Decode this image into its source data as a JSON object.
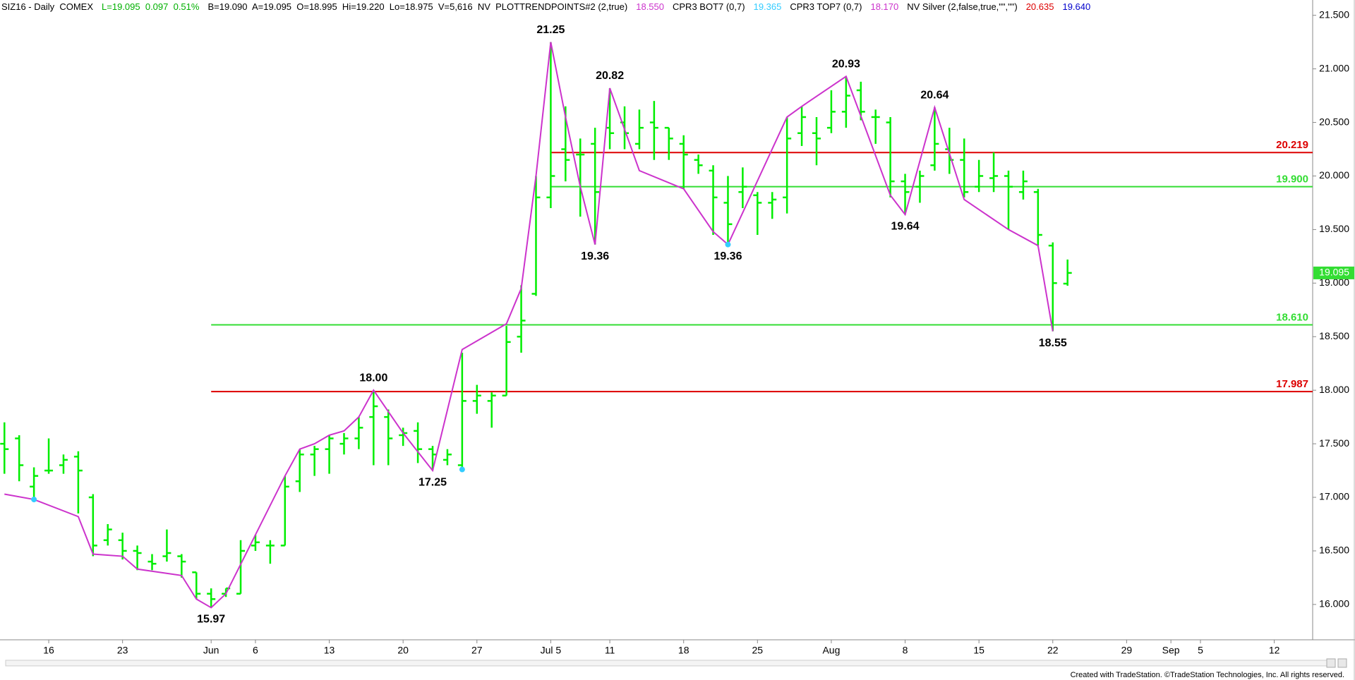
{
  "chart_data": {
    "type": "ohlc",
    "header": [
      {
        "text": "SIZ16 - Daily  COMEX",
        "color": "#000000"
      },
      {
        "text": "L=19.095  0.097  0.51%",
        "color": "#00b000"
      },
      {
        "text": "B=19.090  A=19.095  O=18.995  Hi=19.220  Lo=18.975  V=5,616  NV  PLOTTRENDPOINTS#2 (2,true)",
        "color": "#000000"
      },
      {
        "text": "18.550",
        "color": "#cc33cc"
      },
      {
        "text": "CPR3 BOT7 (0,7)",
        "color": "#000000"
      },
      {
        "text": "19.365",
        "color": "#33ccff"
      },
      {
        "text": "CPR3 TOP7 (0,7)",
        "color": "#000000"
      },
      {
        "text": "18.170",
        "color": "#cc33cc"
      },
      {
        "text": "NV Silver (2,false,true,\"\",\"\")",
        "color": "#000000"
      },
      {
        "text": "20.635",
        "color": "#dd0000"
      },
      {
        "text": "19.640",
        "color": "#0000cc"
      }
    ],
    "color": "#00ee00",
    "open": [
      17.5,
      17.55,
      17.1,
      17.25,
      17.3,
      17.38,
      17.0,
      16.6,
      16.6,
      16.5,
      16.4,
      16.45,
      16.45,
      16.3,
      16.1,
      16.1,
      16.1,
      16.55,
      16.55,
      16.55,
      17.15,
      17.4,
      17.45,
      17.5,
      17.55,
      17.75,
      17.75,
      17.58,
      17.62,
      17.45,
      17.35,
      17.3,
      17.9,
      17.9,
      17.95,
      18.5,
      18.9,
      19.8,
      20.25,
      20.2,
      20.3,
      20.45,
      20.5,
      20.3,
      20.5,
      20.45,
      20.3,
      20.15,
      20.05,
      19.75,
      19.85,
      19.82,
      19.75,
      19.8,
      20.4,
      20.4,
      20.45,
      20.6,
      20.8,
      20.55,
      20.5,
      19.95,
      19.9,
      20.1,
      20.25,
      20.15,
      19.9,
      19.98,
      20.0,
      19.85,
      19.85,
      19.35,
      18.995
    ],
    "high": [
      17.7,
      17.58,
      17.28,
      17.55,
      17.4,
      17.43,
      17.03,
      16.75,
      16.67,
      16.55,
      16.47,
      16.7,
      16.47,
      16.3,
      16.15,
      16.15,
      16.6,
      16.65,
      16.6,
      17.2,
      17.45,
      17.48,
      17.58,
      17.6,
      17.75,
      18.0,
      17.82,
      17.65,
      17.7,
      17.48,
      17.45,
      18.35,
      18.05,
      17.98,
      18.6,
      18.98,
      20.0,
      21.25,
      20.65,
      20.35,
      20.45,
      20.82,
      20.65,
      20.62,
      20.7,
      20.45,
      20.38,
      20.2,
      20.1,
      20.0,
      20.08,
      19.85,
      19.85,
      20.55,
      20.65,
      20.55,
      20.8,
      20.93,
      20.88,
      20.62,
      20.55,
      20.02,
      20.05,
      20.64,
      20.45,
      20.35,
      20.15,
      20.22,
      20.05,
      20.05,
      19.88,
      19.38,
      19.22
    ],
    "low": [
      17.22,
      17.15,
      16.98,
      17.22,
      17.22,
      16.85,
      16.45,
      16.55,
      16.42,
      16.32,
      16.32,
      16.4,
      16.25,
      16.05,
      15.97,
      16.07,
      16.1,
      16.5,
      16.38,
      16.55,
      17.05,
      17.2,
      17.22,
      17.4,
      17.45,
      17.3,
      17.3,
      17.48,
      17.32,
      17.25,
      17.3,
      17.25,
      17.78,
      17.65,
      17.95,
      18.35,
      18.88,
      19.7,
      19.95,
      19.62,
      19.36,
      20.25,
      20.25,
      20.25,
      20.15,
      20.15,
      19.88,
      20.02,
      19.45,
      19.36,
      19.7,
      19.45,
      19.6,
      19.65,
      20.28,
      20.1,
      20.4,
      20.45,
      20.52,
      20.3,
      19.8,
      19.64,
      19.75,
      20.05,
      20.02,
      19.8,
      19.85,
      19.85,
      19.5,
      19.78,
      19.35,
      18.55,
      18.975
    ],
    "close": [
      17.45,
      17.3,
      17.2,
      17.25,
      17.35,
      17.25,
      16.55,
      16.7,
      16.5,
      16.48,
      16.38,
      16.48,
      16.4,
      16.1,
      16.05,
      16.15,
      16.5,
      16.58,
      16.55,
      17.1,
      17.4,
      17.45,
      17.55,
      17.55,
      17.65,
      17.85,
      17.55,
      17.6,
      17.45,
      17.4,
      17.4,
      17.9,
      17.95,
      17.95,
      18.45,
      18.65,
      19.8,
      20.0,
      20.15,
      20.2,
      19.85,
      20.4,
      20.4,
      20.45,
      20.45,
      20.35,
      20.2,
      20.1,
      19.8,
      19.55,
      19.9,
      19.75,
      19.78,
      20.35,
      20.55,
      20.35,
      20.6,
      20.75,
      20.6,
      20.55,
      19.95,
      19.85,
      20.0,
      20.3,
      20.15,
      19.85,
      20.0,
      20.0,
      19.9,
      19.95,
      19.45,
      19.0,
      19.095
    ],
    "trendline": {
      "color": "#cc33cc",
      "x": [
        0,
        2,
        5,
        6,
        8,
        9,
        12,
        13,
        14,
        15,
        17,
        19,
        20,
        21,
        22,
        23,
        24,
        25,
        27,
        29,
        31,
        34,
        35,
        36,
        37,
        38,
        39,
        40,
        41,
        43,
        46,
        48,
        49,
        53,
        54,
        57,
        60,
        61,
        63,
        65,
        68,
        70,
        71
      ],
      "values": [
        17.03,
        16.98,
        16.82,
        16.47,
        16.45,
        16.33,
        16.27,
        16.05,
        15.97,
        16.1,
        16.65,
        17.2,
        17.45,
        17.5,
        17.58,
        17.62,
        17.75,
        18.0,
        17.6,
        17.25,
        18.38,
        18.62,
        18.95,
        20.0,
        21.25,
        20.55,
        19.9,
        19.36,
        20.82,
        20.05,
        19.88,
        19.48,
        19.36,
        20.55,
        20.65,
        20.93,
        19.82,
        19.64,
        20.64,
        19.78,
        19.5,
        19.35,
        18.55
      ]
    },
    "pivot_dots": {
      "color": "#33ccff",
      "x": [
        2,
        31,
        49
      ],
      "values": [
        16.98,
        17.26,
        19.36
      ]
    },
    "annotations": [
      {
        "label": "21.25",
        "x": 37,
        "value": 21.25,
        "placement": "above"
      },
      {
        "label": "20.82",
        "x": 41,
        "value": 20.82,
        "placement": "above"
      },
      {
        "label": "20.93",
        "x": 57,
        "value": 20.93,
        "placement": "above"
      },
      {
        "label": "20.64",
        "x": 63,
        "value": 20.64,
        "placement": "above"
      },
      {
        "label": "18.00",
        "x": 25,
        "value": 18.0,
        "placement": "above"
      },
      {
        "label": "15.97",
        "x": 14,
        "value": 15.97,
        "placement": "below"
      },
      {
        "label": "17.25",
        "x": 29,
        "value": 17.25,
        "placement": "below"
      },
      {
        "label": "19.36",
        "x": 40,
        "value": 19.36,
        "placement": "below"
      },
      {
        "label": "19.36",
        "x": 49,
        "value": 19.36,
        "placement": "below"
      },
      {
        "label": "19.64",
        "x": 61,
        "value": 19.64,
        "placement": "below"
      },
      {
        "label": "18.55",
        "x": 71,
        "value": 18.55,
        "placement": "below"
      }
    ],
    "levels": [
      {
        "value": 20.219,
        "label": "20.219",
        "color": "#dd0000",
        "start": 37
      },
      {
        "value": 19.9,
        "label": "19.900",
        "color": "#33dd33",
        "start": 37
      },
      {
        "value": 18.61,
        "label": "18.610",
        "color": "#33dd33",
        "start": 14
      },
      {
        "value": 17.987,
        "label": "17.987",
        "color": "#dd0000",
        "start": 14
      }
    ],
    "last_price": {
      "value": 19.095,
      "label": "19.095",
      "color": "#33dd33"
    },
    "xlim": [
      -0.3,
      88.6
    ],
    "xticks": [
      {
        "value": 3,
        "label": "16"
      },
      {
        "value": 8,
        "label": "23"
      },
      {
        "value": 14,
        "label": "Jun"
      },
      {
        "value": 17,
        "label": "6"
      },
      {
        "value": 22,
        "label": "13"
      },
      {
        "value": 27,
        "label": "20"
      },
      {
        "value": 32,
        "label": "27"
      },
      {
        "value": 37,
        "label": "Jul 5"
      },
      {
        "value": 41,
        "label": "11"
      },
      {
        "value": 46,
        "label": "18"
      },
      {
        "value": 51,
        "label": "25"
      },
      {
        "value": 56,
        "label": "Aug"
      },
      {
        "value": 61,
        "label": "8"
      },
      {
        "value": 66,
        "label": "15"
      },
      {
        "value": 71,
        "label": "22"
      },
      {
        "value": 76,
        "label": "29"
      },
      {
        "value": 79,
        "label": "Sep"
      },
      {
        "value": 81,
        "label": "5"
      },
      {
        "value": 86,
        "label": "12"
      }
    ],
    "ylim": [
      15.67,
      21.61
    ],
    "yticks": [
      {
        "value": 16,
        "label": "16.000"
      },
      {
        "value": 16.5,
        "label": "16.500"
      },
      {
        "value": 17,
        "label": "17.000"
      },
      {
        "value": 17.5,
        "label": "17.500"
      },
      {
        "value": 18,
        "label": "18.000"
      },
      {
        "value": 18.5,
        "label": "18.500"
      },
      {
        "value": 19,
        "label": "19.000"
      },
      {
        "value": 19.5,
        "label": "19.500"
      },
      {
        "value": 20,
        "label": "20.000"
      },
      {
        "value": 20.5,
        "label": "20.500"
      },
      {
        "value": 21,
        "label": "21.000"
      },
      {
        "value": 21.5,
        "label": "21.500"
      }
    ],
    "footer": "Created with TradeStation. ©TradeStation Technologies, Inc. All rights reserved."
  }
}
